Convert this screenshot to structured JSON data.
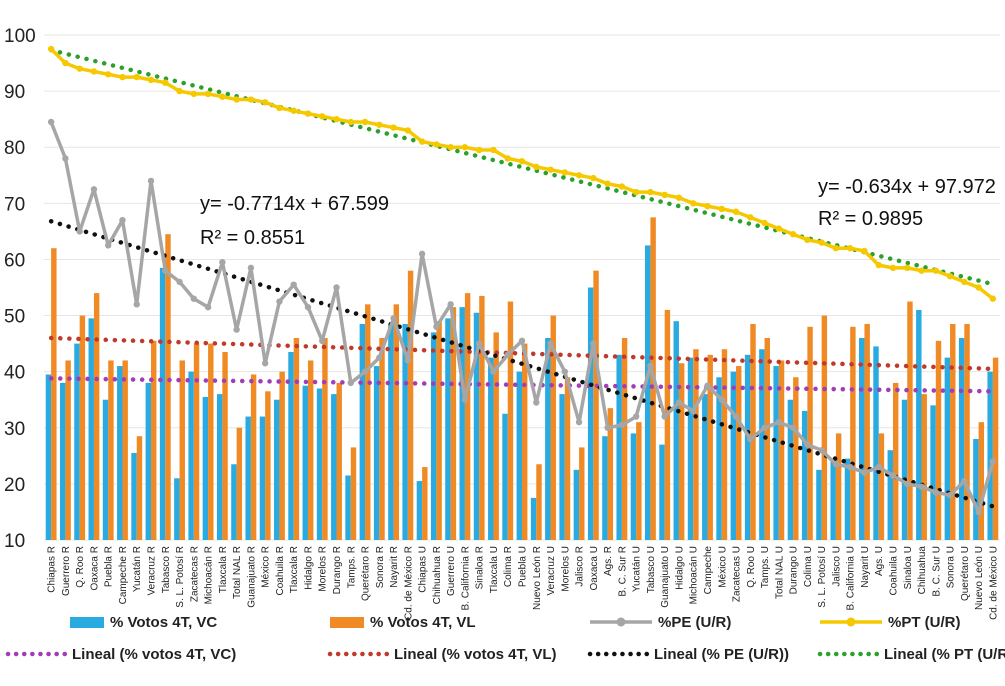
{
  "chart_data": {
    "type": "bar",
    "ylim": [
      10,
      100
    ],
    "yticks": [
      10,
      20,
      30,
      40,
      50,
      60,
      70,
      80,
      90,
      100
    ],
    "categories": [
      "Chiapas R",
      "Guerrero R",
      "Q. Roo R",
      "Oaxaca R",
      "Puebla R",
      "Campeche R",
      "Yucatán R",
      "Veracruz R",
      "Tabasco R",
      "S. L. Potosí R",
      "Zacatecas R",
      "Michoacán R",
      "Tlaxcala R",
      "Total NAL R",
      "Guanajuato R",
      "México R",
      "Coahuila R",
      "Tlaxcala R",
      "Hidalgo R",
      "Morelos R",
      "Durango R",
      "Tamps. R",
      "Querétaro R",
      "Sonora R",
      "Nayarit R",
      "Cd. de México R",
      "Chiapas U",
      "Chihuahua R",
      "Guerrero U",
      "B. California R",
      "Sinaloa R",
      "Tlaxcala U",
      "Colima R",
      "Puebla U",
      "Nuevo León R",
      "Veracruz U",
      "Morelos U",
      "Jalisco R",
      "Oaxaca U",
      "Ags. R",
      "B. C. Sur R",
      "Yucatán U",
      "Tabasco U",
      "Guanajuato U",
      "Hidalgo U",
      "Michoacán U",
      "Campeche",
      "México U",
      "Zacatecas U",
      "Q. Roo U",
      "Tamps. U",
      "Total NAL U",
      "Durango U",
      "Colima U",
      "S. L. Potosí U",
      "Jalisco U",
      "B. California U",
      "Nayarit U",
      "Ags. U",
      "Coahuila U",
      "Sinaloa U",
      "Chihuahua",
      "B. C. Sur U",
      "Sonora U",
      "Querétaro U",
      "Nuevo León U",
      "Cd. de México U"
    ],
    "series": [
      {
        "name": "% Votos 4T, VC",
        "type": "bar",
        "color": "#29abe2",
        "values": [
          39.5,
          38,
          45,
          49.5,
          35,
          41,
          25.5,
          38,
          58.5,
          21,
          40,
          35.5,
          36,
          23.5,
          32,
          32,
          35,
          43.5,
          37.5,
          37,
          36,
          21.5,
          48.5,
          41,
          48.5,
          48.5,
          20.5,
          47,
          49.5,
          51.5,
          50.5,
          42.5,
          32.5,
          40,
          17.5,
          46,
          36,
          22.5,
          55,
          28.5,
          43,
          29,
          62.5,
          27,
          49,
          42.5,
          36,
          39,
          40,
          43,
          44,
          41,
          35,
          33,
          22.5,
          24.5,
          24.5,
          46,
          44.5,
          26,
          35,
          51,
          34,
          42.5,
          46,
          28,
          40
        ]
      },
      {
        "name": "% Votos 4T, VL",
        "type": "bar",
        "color": "#f08a24",
        "values": [
          62,
          42,
          50,
          54,
          42,
          42,
          28.5,
          45.5,
          64.5,
          42,
          45,
          45,
          43.5,
          30,
          39.5,
          36.5,
          40,
          46,
          42,
          46,
          38,
          26.5,
          52,
          46,
          52,
          58,
          23,
          49,
          51.5,
          54,
          53.5,
          47,
          52.5,
          45,
          23.5,
          50,
          39,
          26.5,
          58,
          33.5,
          46,
          31,
          67.5,
          51,
          41.5,
          44,
          43,
          44,
          41,
          48.5,
          46,
          42,
          39,
          48,
          50,
          29,
          48,
          48.5,
          29,
          38,
          52.5,
          36,
          45.5,
          48.5,
          48.5,
          31,
          42.5
        ]
      },
      {
        "name": "%PE (U/R)",
        "type": "line",
        "color": "#a6a6a6",
        "values": [
          84.5,
          78,
          65,
          72.5,
          62.5,
          67,
          52,
          74,
          58,
          56,
          53,
          51.5,
          59.5,
          47.5,
          58.5,
          41.5,
          52.5,
          55.5,
          51.5,
          45.5,
          55,
          38,
          40,
          42.5,
          49.5,
          42,
          61,
          48,
          52,
          35,
          45,
          40,
          43,
          45.5,
          34.5,
          45,
          40,
          31,
          45,
          30,
          30.5,
          32,
          41,
          32,
          34.5,
          33,
          37.5,
          35,
          32,
          28,
          30,
          31,
          30,
          27,
          26,
          23.5,
          23,
          22,
          23,
          21.5,
          20,
          19.5,
          18.5,
          18,
          20.5,
          15,
          24
        ]
      },
      {
        "name": "%PT (U/R)",
        "type": "line",
        "color": "#f5c800",
        "values": [
          97.5,
          95,
          94,
          93.5,
          93,
          92.5,
          92.5,
          92,
          91.5,
          90,
          89.5,
          89.5,
          89,
          88.5,
          88.5,
          88,
          87,
          86.5,
          86,
          85.5,
          85,
          84.5,
          84.5,
          84,
          83.5,
          83,
          81,
          80.5,
          80,
          80,
          79.5,
          79.5,
          78,
          77.5,
          76.5,
          76,
          75.5,
          75,
          74.5,
          73.5,
          73,
          72,
          72,
          71.5,
          71,
          70,
          69.5,
          69,
          68.5,
          67.5,
          66.5,
          65.5,
          64.5,
          63.5,
          63,
          62,
          62,
          61.5,
          59,
          58.5,
          58.5,
          58,
          58,
          57,
          56,
          55,
          53
        ]
      }
    ],
    "trendlines": [
      {
        "name": "Lineal (% votos 4T, VC)",
        "color": "#a23db5",
        "start": 38.8,
        "end": 36.5
      },
      {
        "name": "Lineal (% votos 4T, VL)",
        "color": "#c0392b",
        "start": 46,
        "end": 40.5
      },
      {
        "name": "Lineal (% PE (U/R))",
        "color": "#111111",
        "start": 66.8,
        "end": 16
      },
      {
        "name": "Lineal (% PT (U/R))",
        "color": "#2ca02c",
        "start": 97.3,
        "end": 55.6
      }
    ],
    "annotations": {
      "pe_eq": "y= -0.7714x + 67.599",
      "pe_r2": "R² = 0.8551",
      "pt_eq": "y= -0.634x + 97.972",
      "pt_r2": "R² = 0.9895"
    },
    "legend": {
      "position": "bottom",
      "items": [
        {
          "label": "% Votos 4T, VC",
          "kind": "bar",
          "color": "#29abe2"
        },
        {
          "label": "% Votos 4T, VL",
          "kind": "bar",
          "color": "#f08a24"
        },
        {
          "label": "%PE (U/R)",
          "kind": "line",
          "color": "#a6a6a6"
        },
        {
          "label": "%PT (U/R)",
          "kind": "line",
          "color": "#f5c800"
        },
        {
          "label": "Lineal (% votos 4T, VC)",
          "kind": "dotted",
          "color": "#a23db5"
        },
        {
          "label": "Lineal (% votos 4T, VL)",
          "kind": "dotted",
          "color": "#c0392b"
        },
        {
          "label": "Lineal (% PE (U/R))",
          "kind": "dotted",
          "color": "#111111"
        },
        {
          "label": "Lineal (% PT (U/R))",
          "kind": "dotted",
          "color": "#2ca02c"
        }
      ]
    }
  }
}
